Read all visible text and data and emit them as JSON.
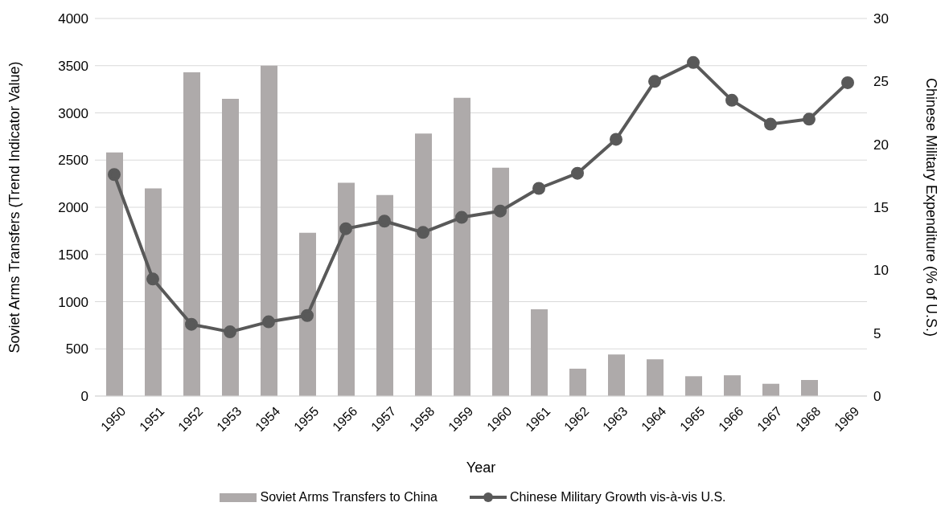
{
  "chart_data": {
    "type": "bar",
    "xlabel": "Year",
    "ylabel": "Soviet Arms Transfers (Trend Indicator Value)",
    "y2label": "Chinese Military Expenditure (% of U.S.)",
    "categories": [
      "1950",
      "1951",
      "1952",
      "1953",
      "1954",
      "1955",
      "1956",
      "1957",
      "1958",
      "1959",
      "1960",
      "1961",
      "1962",
      "1963",
      "1964",
      "1965",
      "1966",
      "1967",
      "1968",
      "1969"
    ],
    "series": [
      {
        "name": "Soviet Arms Transfers to China",
        "color": "#aeaaaa",
        "values": [
          2580,
          2200,
          3430,
          3150,
          3500,
          1730,
          2260,
          2130,
          2780,
          3160,
          2420,
          920,
          290,
          440,
          390,
          210,
          220,
          130,
          170,
          null
        ]
      },
      {
        "name": "Chinese Military Growth vis-à-vis U.S.",
        "type": "line",
        "axis": "y2",
        "color": "#595959",
        "values": [
          17.6,
          9.3,
          5.7,
          5.1,
          5.9,
          6.4,
          13.3,
          13.9,
          13.0,
          14.2,
          14.7,
          16.5,
          17.7,
          20.4,
          25.0,
          26.5,
          23.5,
          21.6,
          22.0,
          24.9
        ]
      }
    ],
    "ylim": [
      0,
      4000
    ],
    "yticks": [
      0,
      500,
      1000,
      1500,
      2000,
      2500,
      3000,
      3500,
      4000
    ],
    "y2lim": [
      0,
      30
    ],
    "y2ticks": [
      0,
      5,
      10,
      15,
      20,
      25,
      30
    ],
    "grid": "y",
    "legend": "bottom",
    "marker": "circle",
    "line_style": "solid"
  }
}
